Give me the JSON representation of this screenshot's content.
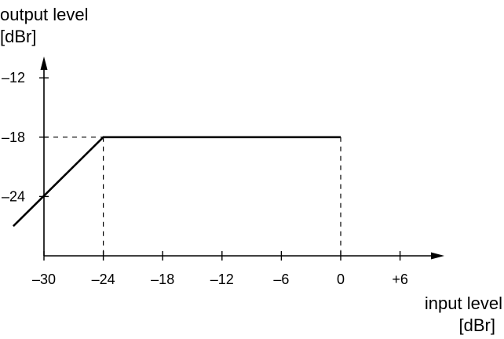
{
  "chart_data": {
    "type": "line",
    "title": "",
    "ylabel_line1": "output level",
    "ylabel_line2": "[dBr]",
    "xlabel_line1": "input level",
    "xlabel_line2": "[dBr]",
    "x_ticks": [
      "–30",
      "–24",
      "–18",
      "–12",
      "–6",
      "0",
      "+6"
    ],
    "x_tick_values": [
      -30,
      -24,
      -18,
      -12,
      -6,
      0,
      6
    ],
    "y_ticks": [
      "–12",
      "–18",
      "–24"
    ],
    "y_tick_values": [
      -12,
      -18,
      -24
    ],
    "xlim": [
      -30,
      6
    ],
    "ylim": [
      -30,
      -6
    ],
    "grid": false,
    "legend": "none",
    "series": [
      {
        "x": [
          -33.1,
          -24,
          0
        ],
        "y": [
          -27,
          -18,
          -18
        ]
      }
    ],
    "reference_lines": {
      "dashed_horizontal_at_y": -18,
      "dashed_horizontal_to_x": -24,
      "dashed_vertical_at_x": [
        -24,
        0
      ],
      "dashed_vertical_from_y": -18
    },
    "colors": {
      "line": "#000000",
      "axis": "#000000"
    }
  }
}
